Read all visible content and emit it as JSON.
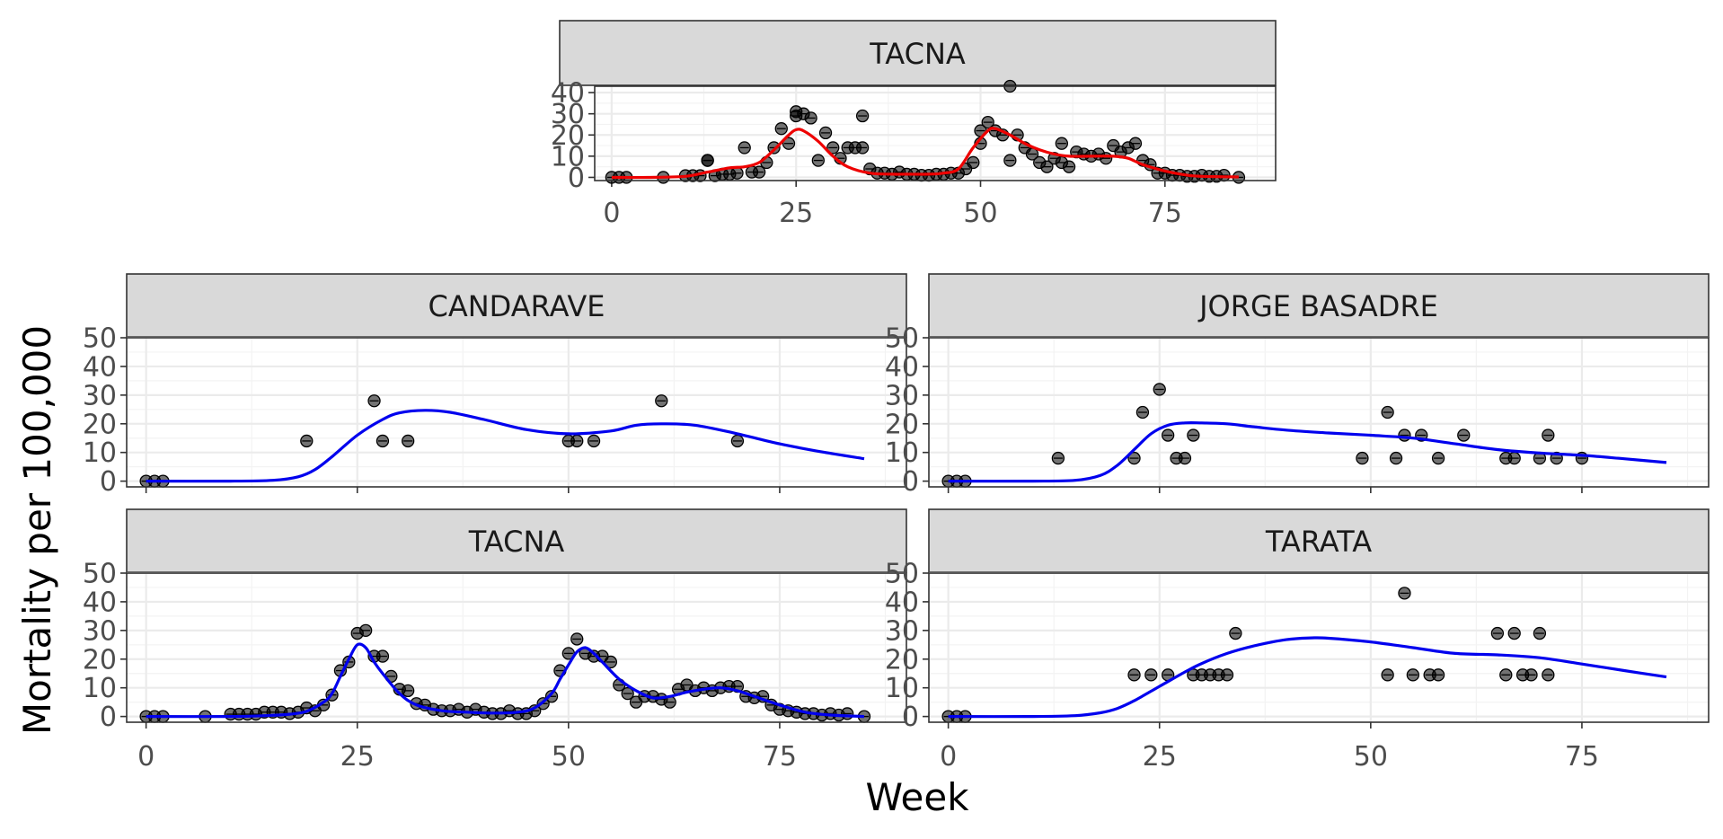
{
  "chart_data": [
    {
      "type": "scatter",
      "panel": "TACNA",
      "title": "TACNA",
      "ylabel": "Mortality per 100,000",
      "xlabel": "",
      "xlim": [
        -2.3,
        90
      ],
      "ylim": [
        -1.5,
        43
      ],
      "xticks": [
        0,
        25,
        50,
        75
      ],
      "yticks": [
        0,
        10,
        20,
        30,
        40
      ],
      "grid": true,
      "curve_color": "#ee0000",
      "points": {
        "x": [
          0,
          1,
          2,
          7,
          10,
          11,
          12,
          13,
          14,
          15,
          16,
          17,
          18,
          19,
          20,
          21,
          22,
          23,
          24,
          25,
          25,
          26,
          27,
          28,
          29,
          30,
          31,
          32,
          33,
          34,
          35,
          36,
          37,
          38,
          39,
          40,
          41,
          42,
          43,
          44,
          45,
          46,
          47,
          48,
          49,
          50,
          50,
          51,
          52,
          53,
          54,
          55,
          56,
          57,
          58,
          59,
          60,
          61,
          61,
          62,
          63,
          64,
          65,
          66,
          67,
          68,
          69,
          70,
          71,
          72,
          73,
          74,
          75,
          76,
          77,
          78,
          79,
          80,
          81,
          82,
          83,
          85,
          54,
          13,
          34
        ],
        "y": [
          0,
          0,
          0,
          0,
          0.8,
          0.8,
          0.8,
          8,
          0.8,
          1.5,
          1.5,
          2,
          14,
          2.5,
          2.5,
          7,
          14,
          23,
          16,
          31,
          29,
          30,
          28,
          8,
          21,
          14,
          9,
          14,
          14,
          14,
          4,
          2,
          2,
          1.5,
          2.5,
          1.5,
          1.5,
          1,
          1,
          1.5,
          1.5,
          2,
          2,
          4,
          7,
          16,
          22,
          26,
          22,
          20,
          8,
          20,
          14,
          11,
          7,
          5,
          9,
          7,
          16,
          5,
          12,
          11,
          10,
          11,
          9,
          15,
          12,
          14,
          16,
          8,
          6,
          2,
          2,
          1,
          1,
          0.5,
          0.5,
          1,
          0.5,
          0.5,
          1,
          0,
          43,
          8,
          29
        ]
      },
      "curve": {
        "x": [
          0,
          5,
          10,
          13,
          16,
          18,
          20,
          22,
          24,
          25,
          26,
          28,
          30,
          32,
          35,
          38,
          40,
          43,
          45,
          47,
          49,
          51,
          52,
          54,
          56,
          58,
          60,
          62,
          65,
          68,
          70,
          72,
          75,
          78,
          80,
          83,
          85
        ],
        "y": [
          0,
          0,
          0.5,
          2.5,
          4.5,
          5,
          7,
          13,
          20,
          22.5,
          22,
          17,
          10,
          5,
          2,
          1.5,
          1.5,
          1.5,
          2,
          4,
          14,
          22,
          23,
          20,
          16,
          13,
          11,
          10,
          10,
          10,
          9,
          6,
          3,
          1,
          0.5,
          0.3,
          0.2
        ]
      }
    },
    {
      "type": "scatter",
      "panel": "CANDARAVE",
      "title": "CANDARAVE",
      "xlim": [
        -2.3,
        90
      ],
      "ylim": [
        -2,
        50
      ],
      "xticks": [
        0,
        25,
        50,
        75
      ],
      "yticks": [
        0,
        10,
        20,
        30,
        40,
        50
      ],
      "grid": true,
      "curve_color": "#0000ee",
      "points": {
        "x": [
          0,
          1,
          2,
          19,
          27,
          28,
          31,
          50,
          51,
          53,
          61,
          70
        ],
        "y": [
          0,
          0,
          0,
          14,
          28,
          14,
          14,
          14,
          14,
          14,
          28,
          14
        ]
      },
      "curve": {
        "x": [
          0,
          10,
          15,
          18,
          20,
          22,
          25,
          28,
          30,
          33,
          36,
          40,
          45,
          50,
          55,
          58,
          61,
          65,
          70,
          75,
          80,
          85
        ],
        "y": [
          0,
          0,
          0.3,
          1.5,
          4,
          8.5,
          16,
          21.5,
          23.8,
          24.7,
          24,
          21.5,
          18,
          16.5,
          17.5,
          19.5,
          20,
          19.5,
          16.5,
          13,
          10.2,
          7.8
        ]
      }
    },
    {
      "type": "scatter",
      "panel": "JORGE BASADRE",
      "title": "JORGE BASADRE",
      "xlim": [
        -2.3,
        90
      ],
      "ylim": [
        -2,
        50
      ],
      "xticks": [
        0,
        25,
        50,
        75
      ],
      "yticks": [
        0,
        10,
        20,
        30,
        40,
        50
      ],
      "grid": true,
      "curve_color": "#0000ee",
      "points": {
        "x": [
          0,
          1,
          2,
          13,
          22,
          23,
          25,
          26,
          27,
          28,
          29,
          49,
          52,
          53,
          54,
          56,
          58,
          61,
          66,
          67,
          70,
          71,
          72,
          75
        ],
        "y": [
          0,
          0,
          0,
          8,
          8,
          24,
          32,
          16,
          8,
          8,
          16,
          8,
          24,
          8,
          16,
          16,
          8,
          16,
          8,
          8,
          8,
          16,
          8,
          8
        ]
      },
      "curve": {
        "x": [
          0,
          10,
          15,
          18,
          20,
          22,
          24,
          26,
          28,
          30,
          33,
          36,
          40,
          45,
          50,
          55,
          60,
          65,
          70,
          75,
          80,
          85
        ],
        "y": [
          0,
          0,
          0.3,
          2,
          5.5,
          11,
          16.5,
          19.5,
          20.3,
          20.3,
          20,
          19,
          17.8,
          16.8,
          16,
          15,
          13,
          11,
          9.8,
          9,
          7.8,
          6.5
        ]
      }
    },
    {
      "type": "scatter",
      "panel": "TACNA",
      "title": "TACNA",
      "xlim": [
        -2.3,
        90
      ],
      "ylim": [
        -2,
        50
      ],
      "xticks": [
        0,
        25,
        50,
        75
      ],
      "yticks": [
        0,
        10,
        20,
        30,
        40,
        50
      ],
      "grid": true,
      "curve_color": "#0000ee",
      "points": {
        "x": [
          0,
          1,
          2,
          7,
          10,
          11,
          12,
          13,
          14,
          15,
          16,
          17,
          18,
          19,
          20,
          21,
          22,
          23,
          24,
          25,
          26,
          27,
          28,
          29,
          30,
          31,
          32,
          33,
          34,
          35,
          36,
          37,
          38,
          39,
          40,
          41,
          42,
          43,
          44,
          45,
          46,
          47,
          48,
          49,
          50,
          51,
          52,
          53,
          54,
          55,
          56,
          57,
          58,
          59,
          60,
          61,
          62,
          63,
          64,
          65,
          66,
          67,
          68,
          69,
          70,
          71,
          72,
          73,
          74,
          75,
          76,
          77,
          78,
          79,
          80,
          81,
          82,
          83,
          85
        ],
        "y": [
          0,
          0,
          0,
          0,
          0.8,
          0.8,
          0.8,
          0.8,
          1.5,
          1.5,
          1.5,
          1,
          1.5,
          3,
          2,
          4,
          7.5,
          16,
          19,
          29,
          30,
          21,
          21,
          14,
          9.5,
          9,
          4.5,
          4,
          2.5,
          2,
          2,
          2.5,
          1.5,
          2.5,
          1.5,
          1,
          1,
          2,
          1,
          1,
          2,
          4.5,
          7,
          16,
          22,
          27,
          22,
          21,
          21,
          19,
          11,
          8,
          5,
          7,
          7,
          6,
          5,
          9.5,
          11,
          9,
          10,
          9,
          10,
          10.5,
          10.5,
          7,
          6.5,
          7,
          4,
          2.5,
          2,
          1.5,
          1,
          1,
          0.5,
          1,
          0.5,
          1,
          0
        ]
      },
      "curve": {
        "x": [
          0,
          10,
          14,
          17,
          19,
          21,
          22,
          23,
          24,
          25,
          26,
          27,
          28,
          30,
          32,
          35,
          38,
          41,
          44,
          46,
          48,
          49,
          50,
          51,
          52,
          53,
          54,
          56,
          58,
          60,
          62,
          64,
          66,
          68,
          70,
          72,
          75,
          78,
          81,
          85
        ],
        "y": [
          0,
          0,
          0.3,
          0.8,
          1.8,
          5,
          8,
          14,
          20,
          25,
          24,
          19,
          15,
          8,
          4,
          2,
          1.5,
          1.2,
          1.5,
          3,
          8,
          13,
          18,
          22.5,
          24,
          22,
          19,
          13,
          9,
          6.5,
          7,
          8.5,
          9.5,
          10,
          9,
          7,
          4,
          1.5,
          0.5,
          0
        ]
      }
    },
    {
      "type": "scatter",
      "panel": "TARATA",
      "title": "TARATA",
      "xlabel": "Week",
      "xlim": [
        -2.3,
        90
      ],
      "ylim": [
        -2,
        50
      ],
      "xticks": [
        0,
        25,
        50,
        75
      ],
      "yticks": [
        0,
        10,
        20,
        30,
        40,
        50
      ],
      "grid": true,
      "curve_color": "#0000ee",
      "points": {
        "x": [
          0,
          1,
          2,
          22,
          24,
          26,
          29,
          30,
          31,
          32,
          33,
          34,
          52,
          54,
          55,
          57,
          58,
          65,
          66,
          67,
          68,
          69,
          70,
          71
        ],
        "y": [
          0,
          0,
          0,
          14.5,
          14.5,
          14.5,
          14.5,
          14.5,
          14.5,
          14.5,
          14.5,
          29,
          14.5,
          43,
          14.5,
          14.5,
          14.5,
          29,
          14.5,
          29,
          14.5,
          14.5,
          29,
          14.5
        ]
      },
      "curve": {
        "x": [
          0,
          10,
          15,
          18,
          20,
          22,
          25,
          28,
          30,
          33,
          36,
          40,
          43,
          45,
          50,
          55,
          60,
          65,
          70,
          75,
          80,
          85
        ],
        "y": [
          0,
          0,
          0.3,
          1.3,
          2.8,
          5.5,
          10.5,
          15.5,
          18.5,
          22,
          24.5,
          26.8,
          27.4,
          27.3,
          26,
          24,
          22,
          21.5,
          20.5,
          18.3,
          16,
          13.8
        ]
      }
    }
  ],
  "figure": {
    "xlabel": "Week",
    "ylabel": "Mortality per 100,000",
    "top_ylabel": "Mortality per 100,000"
  }
}
